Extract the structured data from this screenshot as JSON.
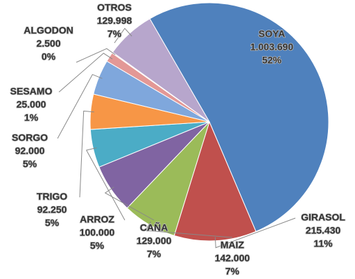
{
  "chart_data": {
    "type": "pie",
    "categories": [
      "SOYA",
      "GIRASOL",
      "MAIZ",
      "CAÑA",
      "ARROZ",
      "TRIGO",
      "SORGO",
      "SESAMO",
      "ALGODON",
      "OTROS"
    ],
    "values": [
      1003690,
      215430,
      142000,
      129000,
      100000,
      92250,
      92000,
      25000,
      2500,
      129998
    ],
    "value_labels": [
      "1.003.690",
      "215.430",
      "142.000",
      "129.000",
      "100.000",
      "92.250",
      "92.000",
      "25.000",
      "2.500",
      "129.998"
    ],
    "percentages": [
      52,
      11,
      7,
      7,
      5,
      5,
      5,
      1,
      0,
      7
    ],
    "percentage_labels": [
      "52%",
      "11%",
      "7%",
      "7%",
      "5%",
      "5%",
      "5%",
      "1%",
      "0%",
      "7%"
    ],
    "colors": [
      "#4f81bd",
      "#c0504d",
      "#9bbb59",
      "#8064a2",
      "#4bacc6",
      "#f79646",
      "#7fa7dc",
      "#e39896",
      "#e6b9b8",
      "#b7a6cc"
    ]
  }
}
